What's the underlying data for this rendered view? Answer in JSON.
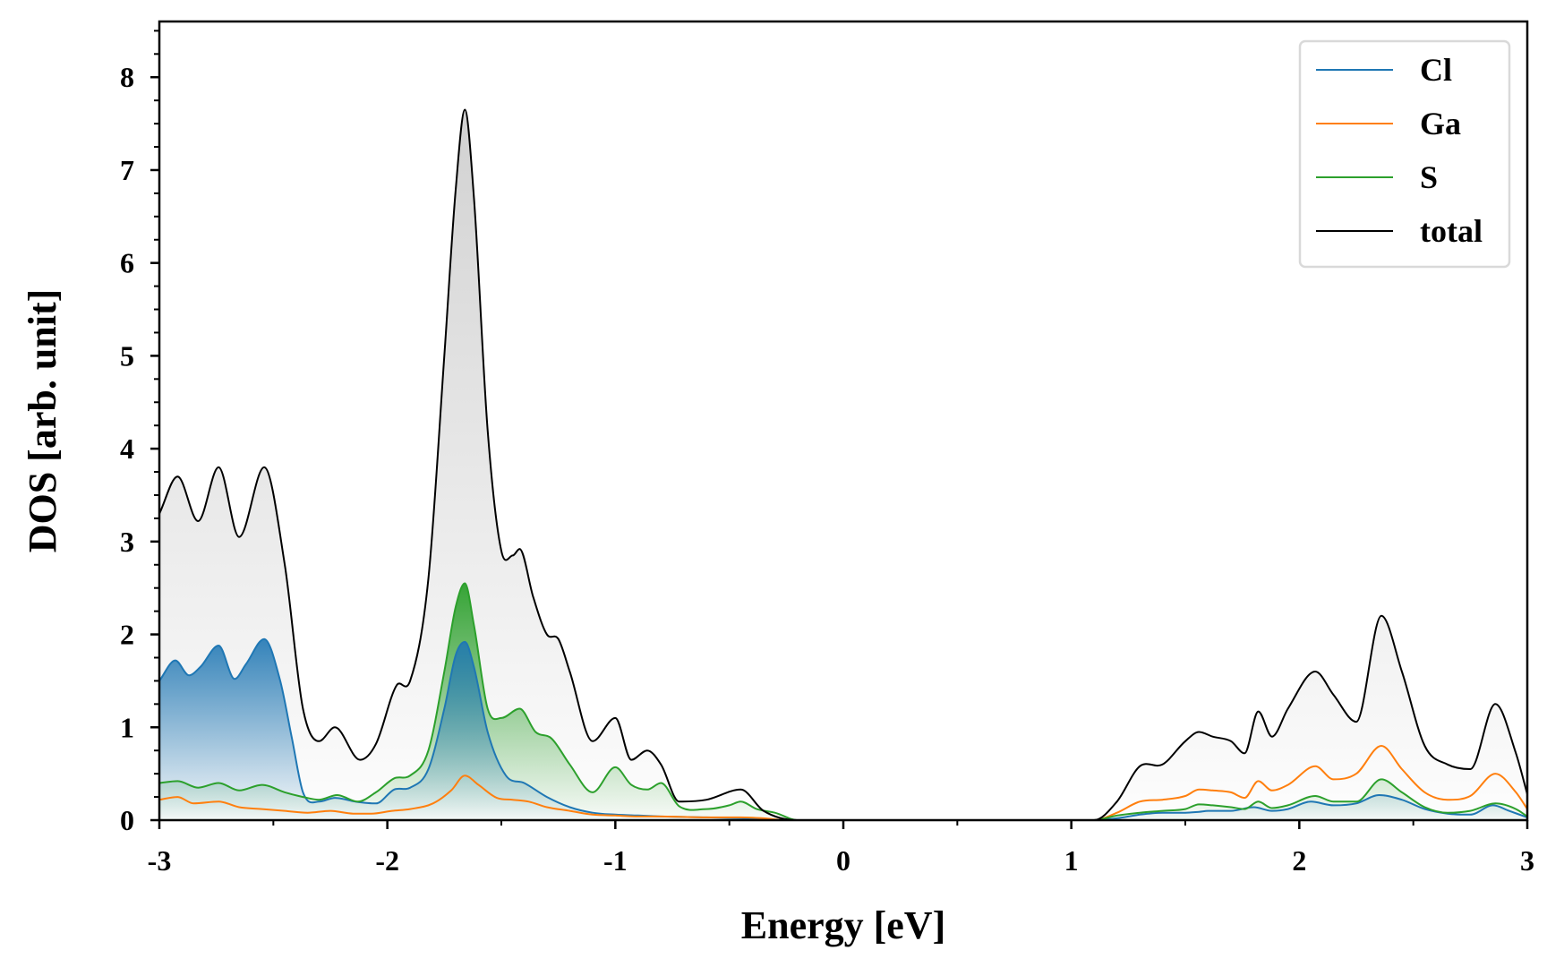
{
  "chart_data": {
    "type": "line",
    "title": "",
    "xlabel": "Energy [eV]",
    "ylabel": "DOS [arb. unit]",
    "xlim": [
      -3,
      3
    ],
    "ylim": [
      0,
      8.6
    ],
    "xticks": [
      -3,
      -2,
      -1,
      0,
      1,
      2,
      3
    ],
    "xtick_labels": [
      "-3",
      "-2",
      "-1",
      "0",
      "1",
      "2",
      "3"
    ],
    "yticks": [
      0,
      1,
      2,
      3,
      4,
      5,
      6,
      7,
      8
    ],
    "ytick_labels": [
      "0",
      "1",
      "2",
      "3",
      "4",
      "5",
      "6",
      "7",
      "8"
    ],
    "legend_position": "top-right",
    "series": [
      {
        "name": "Cl",
        "color": "#1f77b4",
        "filled": true,
        "fill_color": "#1f77b4",
        "x": [
          -3.0,
          -2.93,
          -2.87,
          -2.82,
          -2.74,
          -2.67,
          -2.62,
          -2.54,
          -2.47,
          -2.42,
          -2.37,
          -2.3,
          -2.23,
          -2.14,
          -2.05,
          -1.97,
          -1.9,
          -1.82,
          -1.75,
          -1.7,
          -1.66,
          -1.62,
          -1.56,
          -1.48,
          -1.4,
          -1.3,
          -1.2,
          -1.1,
          -1.0,
          -0.9,
          -0.8,
          -0.6,
          -0.45,
          -0.35,
          -0.25,
          -0.15,
          1.1,
          1.2,
          1.3,
          1.4,
          1.5,
          1.56,
          1.6,
          1.7,
          1.8,
          1.88,
          1.95,
          2.05,
          2.15,
          2.25,
          2.35,
          2.45,
          2.55,
          2.65,
          2.75,
          2.85,
          2.92,
          3.0
        ],
        "y": [
          1.5,
          1.72,
          1.56,
          1.65,
          1.88,
          1.52,
          1.68,
          1.95,
          1.5,
          0.9,
          0.3,
          0.2,
          0.24,
          0.2,
          0.18,
          0.33,
          0.35,
          0.55,
          1.2,
          1.78,
          1.92,
          1.65,
          0.95,
          0.48,
          0.4,
          0.25,
          0.14,
          0.08,
          0.06,
          0.05,
          0.04,
          0.03,
          0.02,
          0.01,
          0.0,
          0.0,
          0.0,
          0.02,
          0.06,
          0.08,
          0.08,
          0.09,
          0.1,
          0.1,
          0.14,
          0.1,
          0.12,
          0.2,
          0.16,
          0.18,
          0.27,
          0.22,
          0.12,
          0.07,
          0.06,
          0.16,
          0.1,
          0.03
        ]
      },
      {
        "name": "Ga",
        "color": "#ff7f0e",
        "filled": false,
        "x": [
          -3.0,
          -2.92,
          -2.85,
          -2.74,
          -2.65,
          -2.55,
          -2.45,
          -2.35,
          -2.25,
          -2.15,
          -2.07,
          -1.98,
          -1.9,
          -1.8,
          -1.72,
          -1.66,
          -1.6,
          -1.52,
          -1.45,
          -1.38,
          -1.3,
          -1.2,
          -1.1,
          -1.0,
          -0.9,
          -0.8,
          -0.6,
          -0.45,
          -0.35,
          -0.25,
          1.1,
          1.2,
          1.3,
          1.4,
          1.5,
          1.56,
          1.62,
          1.7,
          1.76,
          1.82,
          1.88,
          1.95,
          2.07,
          2.15,
          2.25,
          2.36,
          2.45,
          2.55,
          2.65,
          2.75,
          2.86,
          2.95,
          3.0
        ],
        "y": [
          0.22,
          0.25,
          0.18,
          0.2,
          0.14,
          0.12,
          0.1,
          0.08,
          0.1,
          0.07,
          0.07,
          0.1,
          0.12,
          0.18,
          0.32,
          0.48,
          0.38,
          0.24,
          0.22,
          0.2,
          0.14,
          0.1,
          0.06,
          0.05,
          0.04,
          0.04,
          0.03,
          0.03,
          0.02,
          0.0,
          0.0,
          0.08,
          0.2,
          0.22,
          0.26,
          0.33,
          0.32,
          0.3,
          0.24,
          0.42,
          0.32,
          0.38,
          0.58,
          0.44,
          0.5,
          0.8,
          0.55,
          0.3,
          0.22,
          0.26,
          0.5,
          0.3,
          0.12
        ]
      },
      {
        "name": "S",
        "color": "#2ca02c",
        "filled": true,
        "fill_color": "#2ca02c",
        "x": [
          -3.0,
          -2.92,
          -2.83,
          -2.74,
          -2.65,
          -2.55,
          -2.45,
          -2.37,
          -2.3,
          -2.22,
          -2.13,
          -2.05,
          -1.97,
          -1.9,
          -1.82,
          -1.75,
          -1.7,
          -1.66,
          -1.62,
          -1.56,
          -1.5,
          -1.42,
          -1.35,
          -1.28,
          -1.2,
          -1.1,
          -1.0,
          -0.93,
          -0.86,
          -0.8,
          -0.72,
          -0.6,
          -0.5,
          -0.45,
          -0.38,
          -0.3,
          -0.2,
          1.1,
          1.2,
          1.3,
          1.4,
          1.5,
          1.56,
          1.62,
          1.7,
          1.76,
          1.82,
          1.88,
          1.95,
          2.07,
          2.15,
          2.25,
          2.36,
          2.45,
          2.55,
          2.65,
          2.75,
          2.86,
          2.95,
          3.0
        ],
        "y": [
          0.4,
          0.42,
          0.35,
          0.4,
          0.32,
          0.38,
          0.3,
          0.25,
          0.22,
          0.27,
          0.2,
          0.3,
          0.45,
          0.48,
          0.75,
          1.6,
          2.3,
          2.55,
          2.1,
          1.2,
          1.1,
          1.2,
          0.95,
          0.88,
          0.6,
          0.3,
          0.57,
          0.38,
          0.33,
          0.4,
          0.15,
          0.12,
          0.16,
          0.2,
          0.12,
          0.08,
          0.0,
          0.0,
          0.05,
          0.08,
          0.1,
          0.12,
          0.17,
          0.16,
          0.14,
          0.12,
          0.2,
          0.13,
          0.16,
          0.26,
          0.2,
          0.2,
          0.44,
          0.3,
          0.14,
          0.08,
          0.1,
          0.18,
          0.12,
          0.04
        ]
      },
      {
        "name": "total",
        "color": "#000000",
        "filled": true,
        "fill_color": "#9a9a9a",
        "x": [
          -3.0,
          -2.92,
          -2.83,
          -2.74,
          -2.65,
          -2.54,
          -2.45,
          -2.37,
          -2.3,
          -2.23,
          -2.12,
          -2.05,
          -1.96,
          -1.9,
          -1.82,
          -1.75,
          -1.7,
          -1.66,
          -1.62,
          -1.56,
          -1.5,
          -1.45,
          -1.42,
          -1.36,
          -1.3,
          -1.25,
          -1.2,
          -1.1,
          -1.0,
          -0.93,
          -0.86,
          -0.8,
          -0.72,
          -0.6,
          -0.45,
          -0.35,
          -0.2,
          1.1,
          1.2,
          1.3,
          1.4,
          1.5,
          1.56,
          1.62,
          1.7,
          1.76,
          1.82,
          1.88,
          1.95,
          2.07,
          2.15,
          2.25,
          2.36,
          2.45,
          2.55,
          2.65,
          2.75,
          2.86,
          2.95,
          3.0
        ],
        "y": [
          3.3,
          3.7,
          3.22,
          3.8,
          3.05,
          3.8,
          2.75,
          1.2,
          0.85,
          1.0,
          0.65,
          0.82,
          1.45,
          1.5,
          2.6,
          5.0,
          6.8,
          7.65,
          6.7,
          4.2,
          2.9,
          2.85,
          2.92,
          2.4,
          2.0,
          1.95,
          1.6,
          0.85,
          1.1,
          0.65,
          0.75,
          0.6,
          0.2,
          0.22,
          0.33,
          0.1,
          0.0,
          0.0,
          0.2,
          0.58,
          0.6,
          0.85,
          0.95,
          0.9,
          0.85,
          0.72,
          1.17,
          0.9,
          1.2,
          1.6,
          1.35,
          1.06,
          2.2,
          1.6,
          0.8,
          0.6,
          0.55,
          1.25,
          0.72,
          0.28
        ]
      }
    ]
  }
}
